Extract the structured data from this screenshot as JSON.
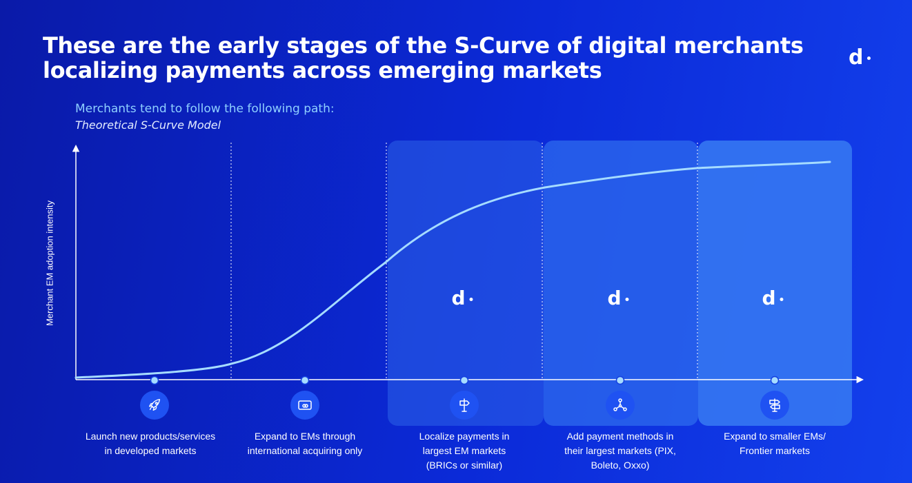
{
  "header": {
    "title_line1": "These are the early stages of the S-Curve of digital merchants",
    "title_line2": "localizing payments across emerging markets",
    "subtitle": "Merchants tend to follow the following path:",
    "subtitle_italic": "Theoretical S-Curve Model",
    "logo_text": "d"
  },
  "chart_data": {
    "type": "line",
    "title": "Theoretical S-Curve Model",
    "xlabel": "",
    "ylabel": "Merchant EM adoption intensity",
    "categories": [
      "Launch new products/services in developed markets",
      "Expand to EMs through international acquiring only",
      "Localize payments in largest EM markets (BRICs or similar)",
      "Add payment methods in their largest markets (PIX, Boleto, Oxxo)",
      "Expand to smaller EMs/ Frontier markets"
    ],
    "grid": false,
    "legend": "none"
  },
  "stages": [
    {
      "line1": "Launch new products/services",
      "line2": "in developed markets",
      "line3": "",
      "icon": "rocket-icon",
      "highlighted": false
    },
    {
      "line1": "Expand to EMs through",
      "line2": "international acquiring only",
      "line3": "",
      "icon": "card-icon",
      "highlighted": false
    },
    {
      "line1": "Localize payments in",
      "line2": "largest EM markets",
      "line3": "(BRICs or similar)",
      "icon": "signpost-icon",
      "highlighted": true
    },
    {
      "line1": "Add payment methods in",
      "line2": "their largest markets (PIX,",
      "line3": "Boleto, Oxxo)",
      "icon": "network-icon",
      "highlighted": true
    },
    {
      "line1": "Expand to smaller EMs/",
      "line2": "Frontier markets",
      "line3": "",
      "icon": "direction-sign-icon",
      "highlighted": true
    }
  ],
  "panel_logo_text": "d",
  "colors": {
    "background": "#0b22c8",
    "curve": "#a6dcff",
    "subtitle": "#8fd0ff",
    "icon_circle": "#1f52f2",
    "panel": "#2f6cf0"
  }
}
